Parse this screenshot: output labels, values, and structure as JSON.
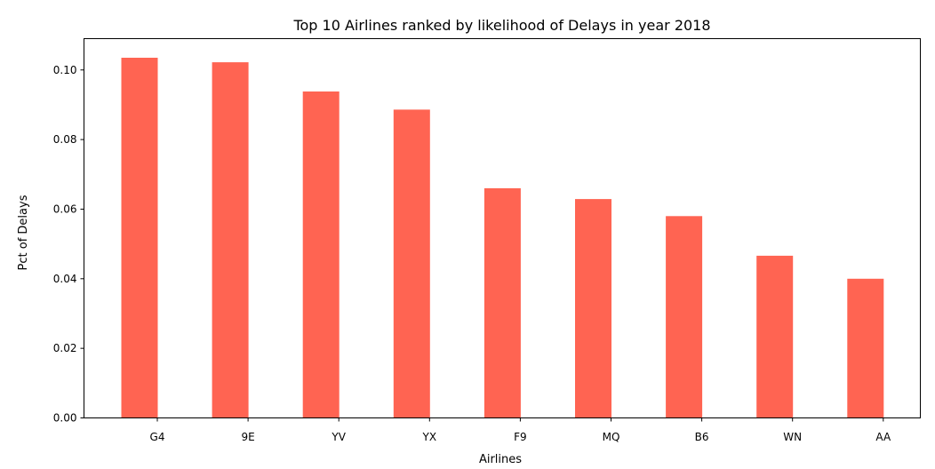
{
  "chart_data": {
    "type": "bar",
    "title": "Top 10 Airlines ranked by likelihood of Delays in year 2018",
    "xlabel": "Airlines",
    "ylabel": "Pct of Delays",
    "categories": [
      "G4",
      "9E",
      "YV",
      "YX",
      "F9",
      "MQ",
      "B6",
      "WN",
      "AA"
    ],
    "values": [
      0.1035,
      0.1022,
      0.0938,
      0.0886,
      0.066,
      0.0629,
      0.058,
      0.0466,
      0.04
    ],
    "ylim": [
      0,
      0.109
    ],
    "yticks": [
      0.0,
      0.02,
      0.04,
      0.06,
      0.08,
      0.1
    ],
    "ytick_labels": [
      "0.00",
      "0.02",
      "0.04",
      "0.06",
      "0.08",
      "0.10"
    ],
    "grid": false,
    "legend": "none",
    "bar_color": "#ff6452"
  }
}
